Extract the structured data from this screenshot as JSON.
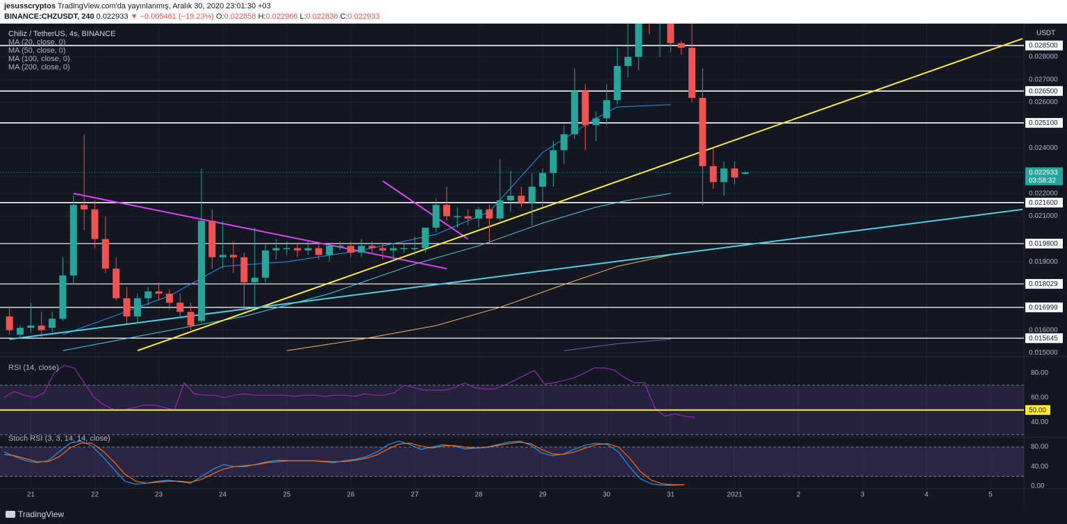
{
  "header": {
    "author": "jesusscryptos",
    "published": "TradingView.com'da yayınlanmış, Aralık 30, 2020 23:01:30 +03",
    "symbol": "BINANCE:CHZUSDT, 240",
    "last": "0.022933",
    "change": "−0.005461 (−19.23%)",
    "o_label": "O:",
    "o": "0.022858",
    "h_label": "H:",
    "h": "0.022966",
    "l_label": "L:",
    "l": "0.022836",
    "c_label": "C:",
    "c": "0.022933"
  },
  "legend": {
    "title": "Chiliz / TetherUS, 4s, BINANCE",
    "ma": [
      "MA (20, close, 0)",
      "MA (50, close, 0)",
      "MA (100, close, 0)",
      "MA (200, close, 0)"
    ]
  },
  "footer": {
    "brand": "TradingView"
  },
  "colors": {
    "background": "#131722",
    "up": "#26a69a",
    "down": "#ef5350",
    "ma20": "#2196f3",
    "ma50": "#4dd0e1",
    "ma100": "#ffb74d",
    "ma200": "#7e57c2",
    "trend_yellow": "#ffeb3b",
    "trend_magenta": "#e040fb",
    "trend_cyan": "#4dd0e1",
    "rsi": "#9c27b0",
    "stoch_k": "#2196f3",
    "stoch_d": "#ff6d00"
  },
  "chart_data": [
    {
      "type": "candlestick",
      "title": "Chiliz / TetherUS, 4s, BINANCE",
      "ylabel": "USDT",
      "ylim": [
        0.0148,
        0.0294
      ],
      "x_ticks": [
        {
          "label": "21",
          "bar": 2
        },
        {
          "label": "22",
          "bar": 8
        },
        {
          "label": "23",
          "bar": 14
        },
        {
          "label": "24",
          "bar": 20
        },
        {
          "label": "25",
          "bar": 26
        },
        {
          "label": "26",
          "bar": 32
        },
        {
          "label": "27",
          "bar": 38
        },
        {
          "label": "28",
          "bar": 44
        },
        {
          "label": "29",
          "bar": 50
        },
        {
          "label": "30",
          "bar": 56
        },
        {
          "label": "31",
          "bar": 62
        },
        {
          "label": "2021",
          "bar": 68
        },
        {
          "label": "2",
          "bar": 74
        },
        {
          "label": "3",
          "bar": 80
        },
        {
          "label": "4",
          "bar": 86
        },
        {
          "label": "5",
          "bar": 92
        }
      ],
      "y_ticks": [
        0.015,
        0.016,
        0.019,
        0.021,
        0.022,
        0.024,
        0.026,
        0.027,
        0.028
      ],
      "price_labels": [
        {
          "value": 0.0285,
          "label": "0.028500",
          "style": "white"
        },
        {
          "value": 0.0265,
          "label": "0.026500",
          "style": "white"
        },
        {
          "value": 0.0251,
          "label": "0.025100",
          "style": "white"
        },
        {
          "value": 0.0216,
          "label": "0.021600",
          "style": "white"
        },
        {
          "value": 0.0198,
          "label": "0.019800",
          "style": "white"
        },
        {
          "value": 0.018029,
          "label": "0.018029",
          "style": "white"
        },
        {
          "value": 0.016999,
          "label": "0.016999",
          "style": "white"
        },
        {
          "value": 0.015645,
          "label": "0.015645",
          "style": "white"
        },
        {
          "value": 0.022933,
          "label": "0.022933",
          "style": "last"
        },
        {
          "value": 0.0227,
          "label": "03:58:32",
          "style": "timer"
        }
      ],
      "horizontal_levels": [
        0.0285,
        0.0265,
        0.0251,
        0.0216,
        0.0198,
        0.018029,
        0.016999,
        0.015645
      ],
      "top_label": "USDT",
      "candles": [
        {
          "o": 0.0166,
          "h": 0.017,
          "l": 0.0158,
          "c": 0.016
        },
        {
          "o": 0.0158,
          "h": 0.0162,
          "l": 0.0156,
          "c": 0.0161
        },
        {
          "o": 0.0161,
          "h": 0.0172,
          "l": 0.0159,
          "c": 0.0162
        },
        {
          "o": 0.0162,
          "h": 0.0168,
          "l": 0.0157,
          "c": 0.016
        },
        {
          "o": 0.0161,
          "h": 0.0168,
          "l": 0.0159,
          "c": 0.0165
        },
        {
          "o": 0.0165,
          "h": 0.0192,
          "l": 0.0164,
          "c": 0.0184
        },
        {
          "o": 0.0184,
          "h": 0.0219,
          "l": 0.018,
          "c": 0.0215
        },
        {
          "o": 0.0215,
          "h": 0.0246,
          "l": 0.0204,
          "c": 0.0213
        },
        {
          "o": 0.0213,
          "h": 0.0217,
          "l": 0.0196,
          "c": 0.02
        },
        {
          "o": 0.02,
          "h": 0.021,
          "l": 0.0185,
          "c": 0.0187
        },
        {
          "o": 0.0187,
          "h": 0.0192,
          "l": 0.0173,
          "c": 0.0174
        },
        {
          "o": 0.0174,
          "h": 0.0179,
          "l": 0.0163,
          "c": 0.0166
        },
        {
          "o": 0.0166,
          "h": 0.0176,
          "l": 0.0163,
          "c": 0.0174
        },
        {
          "o": 0.0174,
          "h": 0.0179,
          "l": 0.0171,
          "c": 0.0177
        },
        {
          "o": 0.0177,
          "h": 0.0181,
          "l": 0.0173,
          "c": 0.0176
        },
        {
          "o": 0.0176,
          "h": 0.0178,
          "l": 0.0169,
          "c": 0.0172
        },
        {
          "o": 0.0172,
          "h": 0.0176,
          "l": 0.0166,
          "c": 0.0168
        },
        {
          "o": 0.0168,
          "h": 0.0172,
          "l": 0.016,
          "c": 0.0162
        },
        {
          "o": 0.0164,
          "h": 0.0231,
          "l": 0.0163,
          "c": 0.0208
        },
        {
          "o": 0.0208,
          "h": 0.0213,
          "l": 0.0187,
          "c": 0.0192
        },
        {
          "o": 0.0192,
          "h": 0.0208,
          "l": 0.0187,
          "c": 0.0193
        },
        {
          "o": 0.0193,
          "h": 0.0199,
          "l": 0.0185,
          "c": 0.0192
        },
        {
          "o": 0.0192,
          "h": 0.0194,
          "l": 0.017,
          "c": 0.0181
        },
        {
          "o": 0.0181,
          "h": 0.0205,
          "l": 0.017,
          "c": 0.0183
        },
        {
          "o": 0.0183,
          "h": 0.0198,
          "l": 0.0181,
          "c": 0.0195
        },
        {
          "o": 0.0195,
          "h": 0.02,
          "l": 0.0191,
          "c": 0.0196
        },
        {
          "o": 0.0196,
          "h": 0.0199,
          "l": 0.0193,
          "c": 0.0196
        },
        {
          "o": 0.0196,
          "h": 0.0198,
          "l": 0.0192,
          "c": 0.0195
        },
        {
          "o": 0.0195,
          "h": 0.0199,
          "l": 0.0193,
          "c": 0.0196
        },
        {
          "o": 0.0196,
          "h": 0.0198,
          "l": 0.0191,
          "c": 0.0193
        },
        {
          "o": 0.0193,
          "h": 0.0198,
          "l": 0.019,
          "c": 0.0197
        },
        {
          "o": 0.0197,
          "h": 0.0199,
          "l": 0.0195,
          "c": 0.0197
        },
        {
          "o": 0.0197,
          "h": 0.0199,
          "l": 0.0192,
          "c": 0.0194
        },
        {
          "o": 0.0194,
          "h": 0.02,
          "l": 0.0192,
          "c": 0.0197
        },
        {
          "o": 0.0197,
          "h": 0.0199,
          "l": 0.0194,
          "c": 0.0196
        },
        {
          "o": 0.0196,
          "h": 0.0198,
          "l": 0.0191,
          "c": 0.0195
        },
        {
          "o": 0.0195,
          "h": 0.0198,
          "l": 0.0191,
          "c": 0.0196
        },
        {
          "o": 0.0196,
          "h": 0.0198,
          "l": 0.0194,
          "c": 0.0196
        },
        {
          "o": 0.0196,
          "h": 0.0201,
          "l": 0.0193,
          "c": 0.0196
        },
        {
          "o": 0.0196,
          "h": 0.0205,
          "l": 0.0194,
          "c": 0.0205
        },
        {
          "o": 0.0205,
          "h": 0.0218,
          "l": 0.0203,
          "c": 0.0215
        },
        {
          "o": 0.0215,
          "h": 0.0223,
          "l": 0.0208,
          "c": 0.021
        },
        {
          "o": 0.021,
          "h": 0.0214,
          "l": 0.0205,
          "c": 0.021
        },
        {
          "o": 0.021,
          "h": 0.0213,
          "l": 0.0206,
          "c": 0.0209
        },
        {
          "o": 0.0209,
          "h": 0.0214,
          "l": 0.0205,
          "c": 0.0213
        },
        {
          "o": 0.0213,
          "h": 0.0215,
          "l": 0.0198,
          "c": 0.0209
        },
        {
          "o": 0.0209,
          "h": 0.0235,
          "l": 0.0208,
          "c": 0.0217
        },
        {
          "o": 0.0217,
          "h": 0.023,
          "l": 0.0212,
          "c": 0.0219
        },
        {
          "o": 0.0219,
          "h": 0.0223,
          "l": 0.0214,
          "c": 0.0216
        },
        {
          "o": 0.0216,
          "h": 0.0229,
          "l": 0.0206,
          "c": 0.0223
        },
        {
          "o": 0.0223,
          "h": 0.0231,
          "l": 0.0214,
          "c": 0.0229
        },
        {
          "o": 0.0229,
          "h": 0.0243,
          "l": 0.0223,
          "c": 0.0239
        },
        {
          "o": 0.0239,
          "h": 0.025,
          "l": 0.0233,
          "c": 0.0246
        },
        {
          "o": 0.0246,
          "h": 0.0275,
          "l": 0.0244,
          "c": 0.0265
        },
        {
          "o": 0.0265,
          "h": 0.0268,
          "l": 0.0239,
          "c": 0.025
        },
        {
          "o": 0.025,
          "h": 0.0256,
          "l": 0.0243,
          "c": 0.0253
        },
        {
          "o": 0.0253,
          "h": 0.0268,
          "l": 0.025,
          "c": 0.0261
        },
        {
          "o": 0.0261,
          "h": 0.0284,
          "l": 0.0259,
          "c": 0.0276
        },
        {
          "o": 0.0276,
          "h": 0.0298,
          "l": 0.0271,
          "c": 0.028
        },
        {
          "o": 0.028,
          "h": 0.0298,
          "l": 0.0274,
          "c": 0.0296
        }
      ],
      "candles_cont": [
        {
          "o": 0.0296,
          "h": 0.0299,
          "l": 0.029,
          "c": 0.0295
        },
        {
          "o": 0.0295,
          "h": 0.0298,
          "l": 0.028,
          "c": 0.0295
        },
        {
          "o": 0.0296,
          "h": 0.0298,
          "l": 0.0282,
          "c": 0.0286
        },
        {
          "o": 0.0286,
          "h": 0.0287,
          "l": 0.0281,
          "c": 0.0284
        },
        {
          "o": 0.0284,
          "h": 0.0299,
          "l": 0.026,
          "c": 0.0262
        },
        {
          "o": 0.0262,
          "h": 0.0275,
          "l": 0.0215,
          "c": 0.0232
        },
        {
          "o": 0.0232,
          "h": 0.024,
          "l": 0.0222,
          "c": 0.0225
        },
        {
          "o": 0.0225,
          "h": 0.0234,
          "l": 0.0219,
          "c": 0.0231
        },
        {
          "o": 0.0231,
          "h": 0.0234,
          "l": 0.0224,
          "c": 0.0227
        },
        {
          "o": 0.02286,
          "h": 0.02297,
          "l": 0.02284,
          "c": 0.02293
        }
      ],
      "moving_averages": [
        {
          "name": "MA (20, close, 0)",
          "pts": [
            [
              5,
              0.0158
            ],
            [
              15,
              0.0175
            ],
            [
              20,
              0.0188
            ],
            [
              26,
              0.019
            ],
            [
              33,
              0.0195
            ],
            [
              40,
              0.0202
            ],
            [
              45,
              0.0212
            ],
            [
              50,
              0.0238
            ],
            [
              55,
              0.0253
            ],
            [
              57,
              0.0258
            ],
            [
              62,
              0.0259
            ]
          ]
        },
        {
          "name": "MA (50, close, 0)",
          "pts": [
            [
              5,
              0.0151
            ],
            [
              14,
              0.0159
            ],
            [
              22,
              0.0166
            ],
            [
              30,
              0.0176
            ],
            [
              38,
              0.0189
            ],
            [
              44,
              0.0197
            ],
            [
              50,
              0.0207
            ],
            [
              55,
              0.0214
            ],
            [
              58,
              0.0217
            ],
            [
              62,
              0.022
            ]
          ]
        },
        {
          "name": "MA (100, close, 0)",
          "pts": [
            [
              26,
              0.0151
            ],
            [
              33,
              0.0156
            ],
            [
              40,
              0.0162
            ],
            [
              46,
              0.017
            ],
            [
              52,
              0.018
            ],
            [
              57,
              0.0188
            ],
            [
              62,
              0.0193
            ]
          ]
        },
        {
          "name": "MA (200, close, 0)",
          "pts": [
            [
              52,
              0.0151
            ],
            [
              57,
              0.0154
            ],
            [
              62,
              0.0156
            ]
          ]
        }
      ],
      "trendlines": [
        {
          "color": "trend_magenta",
          "from": [
            6,
            0.022
          ],
          "to": [
            41,
            0.0187
          ]
        },
        {
          "color": "trend_magenta",
          "from": [
            35,
            0.02255
          ],
          "to": [
            43,
            0.02
          ]
        },
        {
          "color": "trend_yellow",
          "from": [
            12,
            0.0151
          ],
          "to": [
            95,
            0.0288
          ]
        },
        {
          "color": "trend_cyan",
          "from": [
            0,
            0.0156
          ],
          "to": [
            95,
            0.0213
          ]
        }
      ]
    },
    {
      "type": "line",
      "title": "RSI (14, close)",
      "ylim": [
        28,
        93
      ],
      "y_ticks": [
        80,
        60,
        40
      ],
      "bands": [
        70,
        30
      ],
      "level": {
        "value": 50,
        "label": "50.00"
      },
      "values": [
        60,
        65,
        62,
        60,
        64,
        80,
        86,
        84,
        72,
        60,
        54,
        50,
        50,
        52,
        54,
        54,
        52,
        50,
        72,
        63,
        62,
        62,
        60,
        62,
        63,
        62,
        62,
        62,
        62,
        61,
        62,
        62,
        61,
        62,
        62,
        61,
        63,
        62,
        62,
        64,
        70,
        68,
        66,
        66,
        66,
        68,
        72,
        68,
        67,
        67,
        70,
        74,
        78,
        82,
        71,
        72,
        74,
        76,
        80,
        84,
        84,
        82,
        76,
        72,
        72,
        52,
        45,
        47,
        45,
        44
      ]
    },
    {
      "type": "line",
      "title": "Stoch RSI (3, 3, 14, 14, close)",
      "ylim": [
        -5,
        100
      ],
      "y_ticks": [
        80,
        40,
        0
      ],
      "tick_labels": [
        "80.00",
        "40.00",
        "0.00"
      ],
      "bands": [
        80,
        20
      ],
      "series": [
        {
          "key": "stoch_k",
          "values": [
            70,
            60,
            52,
            48,
            52,
            70,
            88,
            92,
            82,
            60,
            35,
            10,
            4,
            6,
            10,
            12,
            9,
            6,
            20,
            34,
            44,
            40,
            40,
            45,
            50,
            53,
            52,
            52,
            52,
            50,
            48,
            52,
            55,
            60,
            70,
            85,
            92,
            85,
            75,
            80,
            85,
            82,
            76,
            78,
            80,
            85,
            90,
            92,
            84,
            68,
            62,
            66,
            76,
            84,
            88,
            85,
            70,
            40,
            15,
            5,
            2,
            2,
            3
          ]
        },
        {
          "key": "stoch_d",
          "values": [
            65,
            62,
            56,
            50,
            50,
            60,
            78,
            88,
            88,
            72,
            50,
            25,
            10,
            6,
            8,
            10,
            10,
            8,
            14,
            25,
            35,
            40,
            42,
            44,
            48,
            50,
            52,
            52,
            52,
            51,
            50,
            50,
            53,
            57,
            64,
            76,
            86,
            88,
            82,
            78,
            82,
            83,
            80,
            78,
            79,
            83,
            87,
            90,
            87,
            75,
            66,
            65,
            70,
            78,
            85,
            87,
            80,
            58,
            30,
            12,
            5,
            3,
            3
          ]
        }
      ]
    }
  ]
}
